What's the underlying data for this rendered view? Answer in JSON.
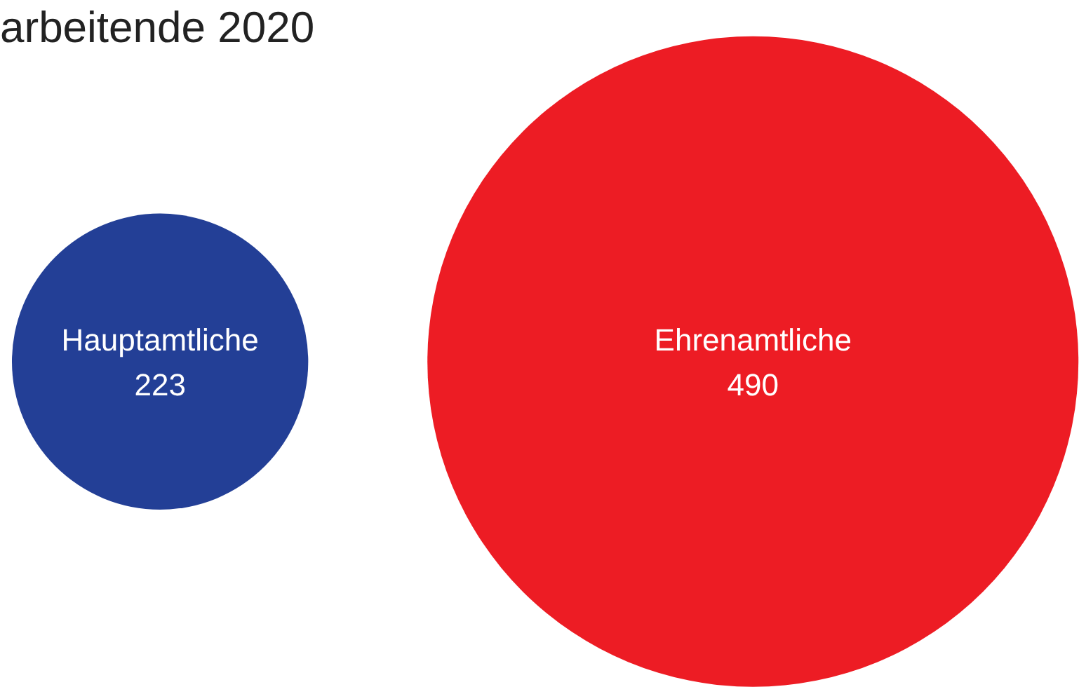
{
  "chart_data": {
    "type": "other",
    "title": "arbeitende 2020",
    "categories": [
      "Hauptamtliche",
      "Ehrenamtliche"
    ],
    "values": [
      223,
      490
    ],
    "colors": [
      "#233f96",
      "#ed1c24"
    ],
    "data_labels": true
  }
}
